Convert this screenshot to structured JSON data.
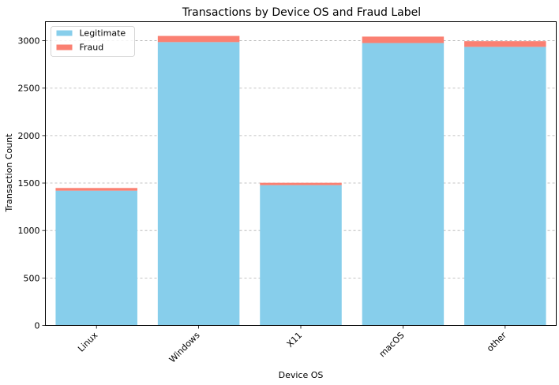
{
  "chart_data": {
    "type": "bar",
    "stacked": true,
    "title": "Transactions by Device OS and Fraud Label",
    "xlabel": "Device OS",
    "ylabel": "Transaction Count",
    "categories": [
      "Linux",
      "Windows",
      "X11",
      "macOS",
      "other"
    ],
    "series": [
      {
        "name": "Legitimate",
        "color": "#87CEEB",
        "values": [
          1420,
          2985,
          1478,
          2975,
          2935
        ]
      },
      {
        "name": "Fraud",
        "color": "#FA8072",
        "values": [
          28,
          65,
          25,
          68,
          60
        ]
      }
    ],
    "ylim": [
      0,
      3200
    ],
    "yticks": [
      0,
      500,
      1000,
      1500,
      2000,
      2500,
      3000
    ],
    "grid": "y-dashed",
    "legend_position": "top-left",
    "xtick_rotation": -45
  }
}
